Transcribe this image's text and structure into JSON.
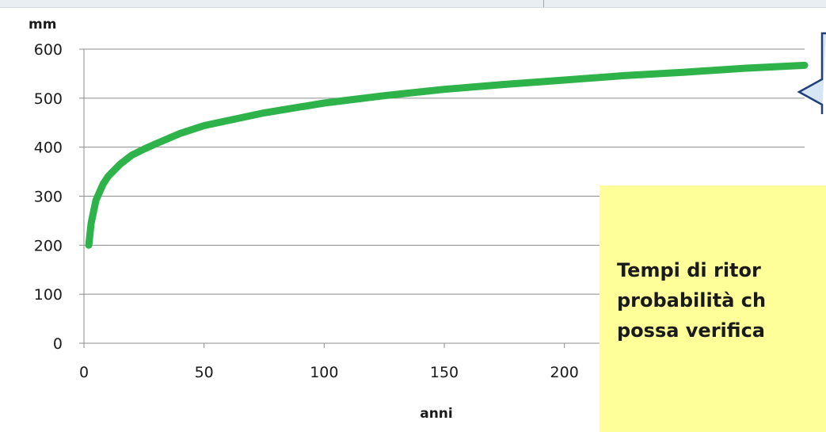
{
  "chart_data": {
    "type": "line",
    "title": "",
    "xlabel": "anni",
    "ylabel": "mm",
    "xlim": [
      0,
      300
    ],
    "ylim": [
      0,
      600
    ],
    "x_ticks": [
      "0",
      "50",
      "100",
      "150",
      "200"
    ],
    "y_ticks": [
      "0",
      "100",
      "200",
      "300",
      "400",
      "500",
      "600"
    ],
    "grid": "horizontal",
    "legend": "none",
    "series": [
      {
        "color": "#2eb34a",
        "x": [
          2,
          3,
          5,
          8,
          10,
          15,
          20,
          25,
          30,
          40,
          50,
          75,
          100,
          125,
          150,
          175,
          200,
          225,
          250,
          275,
          300
        ],
        "y": [
          200,
          245,
          292,
          325,
          340,
          365,
          384,
          396,
          407,
          428,
          444,
          470,
          490,
          505,
          518,
          528,
          537,
          546,
          553,
          561,
          567
        ]
      }
    ]
  },
  "note": {
    "lines": [
      "Tempi di ritor",
      "probabilità ch",
      "possa verifica"
    ],
    "background": "#ffff99"
  },
  "callout": {
    "fill": "#d6e6f4",
    "border": "#1f3f7a"
  }
}
